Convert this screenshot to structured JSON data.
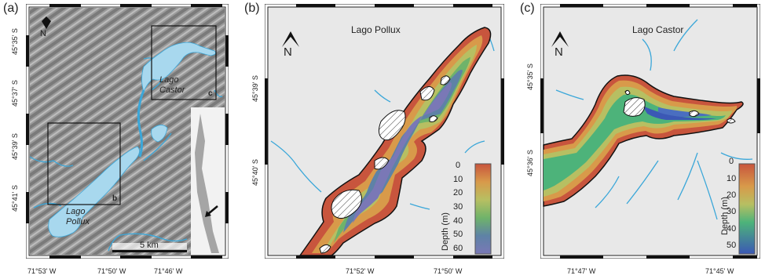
{
  "panels": {
    "a": {
      "label": "(a)",
      "north": "N",
      "lat_labels": [
        "45°35' S",
        "45°37' S",
        "45°39' S",
        "45°41' S"
      ],
      "lon_labels": [
        "71°53' W",
        "71°50' W",
        "71°46' W"
      ],
      "lake_labels": [
        {
          "line1": "Lago",
          "line2": "Castor"
        },
        {
          "line1": "Lago",
          "line2": "Pollux"
        }
      ],
      "box_labels": [
        "c",
        "b"
      ],
      "scalebar": "5 km"
    },
    "b": {
      "label": "(b)",
      "title": "Lago Pollux",
      "north": "N",
      "lat_labels": [
        "45°39' S",
        "45°40' S"
      ],
      "lon_labels": [
        "71°52' W",
        "71°50' W"
      ],
      "colorbar_title": "Depth (m)",
      "colorbar_ticks": [
        "0",
        "10",
        "20",
        "30",
        "40",
        "50",
        "60"
      ]
    },
    "c": {
      "label": "(c)",
      "title": "Lago Castor",
      "north": "N",
      "lat_labels": [
        "45°35' S",
        "45°36' S"
      ],
      "lon_labels": [
        "71°47' W",
        "71°45' W"
      ],
      "colorbar_title": "Depth (m)",
      "colorbar_ticks": [
        "0",
        "10",
        "20",
        "30",
        "40",
        "50"
      ]
    }
  },
  "colors": {
    "lake": "#a8d8ee",
    "river": "#3ba7d9",
    "background": "#e8e8e8",
    "relief_dark": "#6c6c6c",
    "relief_light": "#b4b4b4",
    "depth_shallow": "#c8553d",
    "depth_mid": "#6fb36a",
    "depth_deep": "#5a5fa8"
  }
}
